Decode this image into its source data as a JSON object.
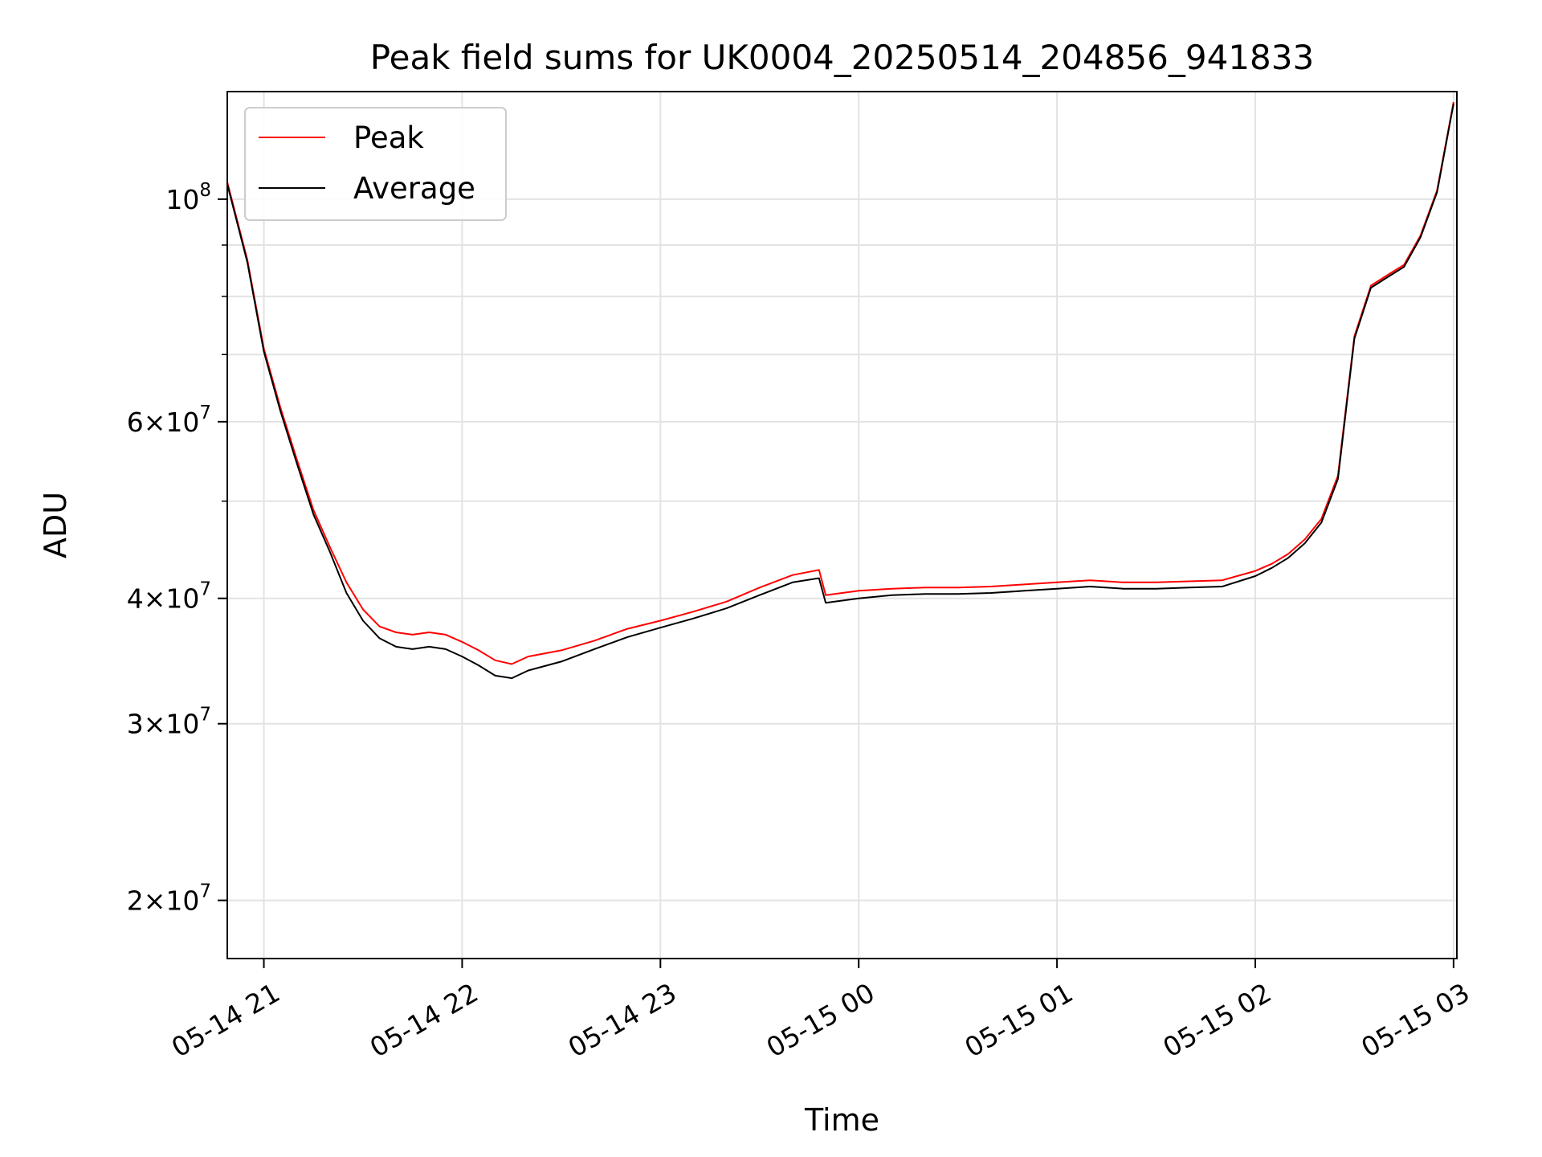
{
  "chart_data": {
    "type": "line",
    "title": "Peak field sums for UK0004_20250514_204856_941833",
    "xlabel": "Time",
    "ylabel": "ADU",
    "yscale": "log",
    "xlim": [
      "2025-05-14 20:48:56",
      "2025-05-15 03:01:00"
    ],
    "ylim": [
      17500000,
      128000000
    ],
    "grid": true,
    "legend_position": "upper left",
    "x_ticks": [
      {
        "value": "2025-05-14 21:00",
        "label": "05-14 21"
      },
      {
        "value": "2025-05-14 22:00",
        "label": "05-14 22"
      },
      {
        "value": "2025-05-14 23:00",
        "label": "05-14 23"
      },
      {
        "value": "2025-05-15 00:00",
        "label": "05-15 00"
      },
      {
        "value": "2025-05-15 01:00",
        "label": "05-15 01"
      },
      {
        "value": "2025-05-15 02:00",
        "label": "05-15 02"
      },
      {
        "value": "2025-05-15 03:00",
        "label": "05-15 03"
      }
    ],
    "y_ticks": [
      {
        "value": 20000000,
        "mantissa": "2",
        "base": "10",
        "exp": "7"
      },
      {
        "value": 30000000,
        "mantissa": "3",
        "base": "10",
        "exp": "7"
      },
      {
        "value": 40000000,
        "mantissa": "4",
        "base": "10",
        "exp": "7"
      },
      {
        "value": 60000000,
        "mantissa": "6",
        "base": "10",
        "exp": "7"
      },
      {
        "value": 100000000,
        "mantissa": "",
        "base": "10",
        "exp": "8"
      }
    ],
    "y_minor_ticks": [
      50000000,
      70000000,
      80000000,
      90000000
    ],
    "x": [
      "2025-05-14 20:48:56",
      "2025-05-14 20:55",
      "2025-05-14 21:00",
      "2025-05-14 21:05",
      "2025-05-14 21:10",
      "2025-05-14 21:15",
      "2025-05-14 21:20",
      "2025-05-14 21:25",
      "2025-05-14 21:30",
      "2025-05-14 21:35",
      "2025-05-14 21:40",
      "2025-05-14 21:45",
      "2025-05-14 21:50",
      "2025-05-14 21:55",
      "2025-05-14 22:00",
      "2025-05-14 22:05",
      "2025-05-14 22:10",
      "2025-05-14 22:15",
      "2025-05-14 22:20",
      "2025-05-14 22:30",
      "2025-05-14 22:40",
      "2025-05-14 22:50",
      "2025-05-14 23:00",
      "2025-05-14 23:10",
      "2025-05-14 23:20",
      "2025-05-14 23:30",
      "2025-05-14 23:40",
      "2025-05-14 23:48",
      "2025-05-14 23:50",
      "2025-05-15 00:00",
      "2025-05-15 00:10",
      "2025-05-15 00:20",
      "2025-05-15 00:30",
      "2025-05-15 00:40",
      "2025-05-15 00:50",
      "2025-05-15 01:00",
      "2025-05-15 01:10",
      "2025-05-15 01:20",
      "2025-05-15 01:30",
      "2025-05-15 01:40",
      "2025-05-15 01:50",
      "2025-05-15 02:00",
      "2025-05-15 02:05",
      "2025-05-15 02:10",
      "2025-05-15 02:15",
      "2025-05-15 02:20",
      "2025-05-15 02:25",
      "2025-05-15 02:30",
      "2025-05-15 02:35",
      "2025-05-15 02:40",
      "2025-05-15 02:45",
      "2025-05-15 02:50",
      "2025-05-15 02:55",
      "2025-05-15 03:00"
    ],
    "series": [
      {
        "name": "Peak",
        "color": "#ff0000",
        "values": [
          104000000,
          87000000,
          71000000,
          62000000,
          55000000,
          49000000,
          45000000,
          41500000,
          39000000,
          37500000,
          37000000,
          36800000,
          37000000,
          36800000,
          36200000,
          35500000,
          34700000,
          34400000,
          35000000,
          35500000,
          36300000,
          37300000,
          38000000,
          38800000,
          39700000,
          41000000,
          42200000,
          42700000,
          40300000,
          40700000,
          40900000,
          41000000,
          41000000,
          41100000,
          41300000,
          41500000,
          41700000,
          41500000,
          41500000,
          41600000,
          41700000,
          42600000,
          43300000,
          44300000,
          45800000,
          48000000,
          53000000,
          73000000,
          82000000,
          84000000,
          86000000,
          92000000,
          102000000,
          125000000
        ]
      },
      {
        "name": "Average",
        "color": "#000000",
        "values": [
          103500000,
          86500000,
          70500000,
          61500000,
          54500000,
          48500000,
          44500000,
          40500000,
          38000000,
          36500000,
          35800000,
          35600000,
          35800000,
          35600000,
          35000000,
          34300000,
          33500000,
          33300000,
          33900000,
          34600000,
          35600000,
          36600000,
          37400000,
          38200000,
          39100000,
          40300000,
          41500000,
          41900000,
          39600000,
          40000000,
          40300000,
          40400000,
          40400000,
          40500000,
          40700000,
          40900000,
          41100000,
          40900000,
          40900000,
          41000000,
          41100000,
          42100000,
          42900000,
          43900000,
          45400000,
          47600000,
          52600000,
          72600000,
          81600000,
          83600000,
          85600000,
          91600000,
          101600000,
          124500000
        ]
      }
    ]
  }
}
